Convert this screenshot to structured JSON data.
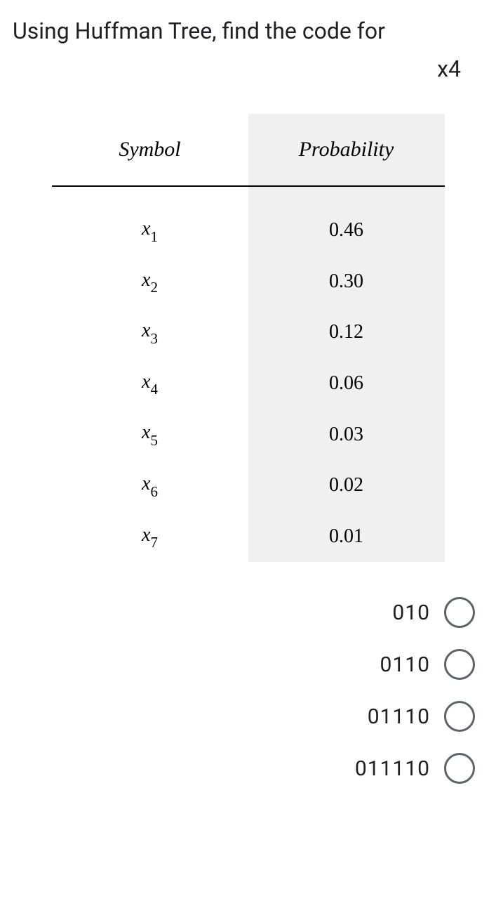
{
  "question": {
    "prompt": "Using Huffman Tree, find the code for",
    "target": "x4"
  },
  "table": {
    "headers": {
      "symbol": "Symbol",
      "probability": "Probability"
    },
    "rows": [
      {
        "symbol_base": "x",
        "symbol_sub": "1",
        "probability": "0.46"
      },
      {
        "symbol_base": "x",
        "symbol_sub": "2",
        "probability": "0.30"
      },
      {
        "symbol_base": "x",
        "symbol_sub": "3",
        "probability": "0.12"
      },
      {
        "symbol_base": "x",
        "symbol_sub": "4",
        "probability": "0.06"
      },
      {
        "symbol_base": "x",
        "symbol_sub": "5",
        "probability": "0.03"
      },
      {
        "symbol_base": "x",
        "symbol_sub": "6",
        "probability": "0.02"
      },
      {
        "symbol_base": "x",
        "symbol_sub": "7",
        "probability": "0.01"
      }
    ]
  },
  "options": [
    {
      "label": "010"
    },
    {
      "label": "0110"
    },
    {
      "label": "01110"
    },
    {
      "label": "011110"
    }
  ]
}
